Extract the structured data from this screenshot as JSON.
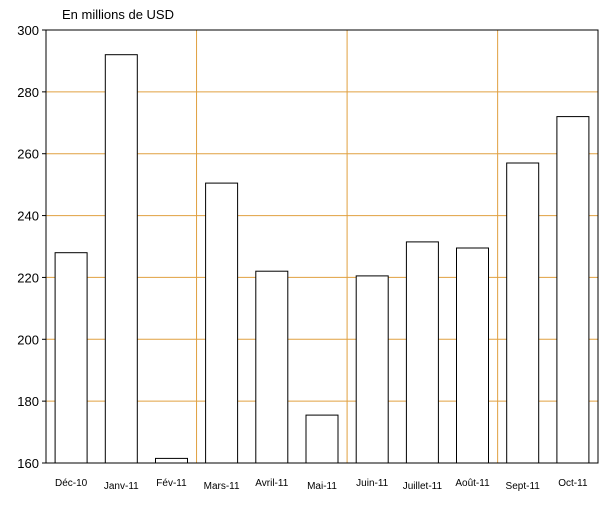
{
  "chart_data": {
    "type": "bar",
    "unit_label": "En millions de USD",
    "categories": [
      "Déc-10",
      "Janv-11",
      "Fév-11",
      "Mars-11",
      "Avril-11",
      "Mai-11",
      "Juin-11",
      "Juillet-11",
      "Août-11",
      "Sept-11",
      "Oct-11"
    ],
    "values": [
      228,
      292,
      161.5,
      250.5,
      222,
      175.5,
      220.5,
      231.5,
      229.5,
      257,
      272
    ],
    "ylim": [
      160,
      300
    ],
    "yticks": [
      "160",
      "180",
      "200",
      "220",
      "240",
      "260",
      "280",
      "300"
    ],
    "grid": true,
    "colors": {
      "grid": "#e0a040",
      "bar_fill": "#ffffff",
      "bar_stroke": "#000000",
      "axis": "#000000"
    }
  }
}
